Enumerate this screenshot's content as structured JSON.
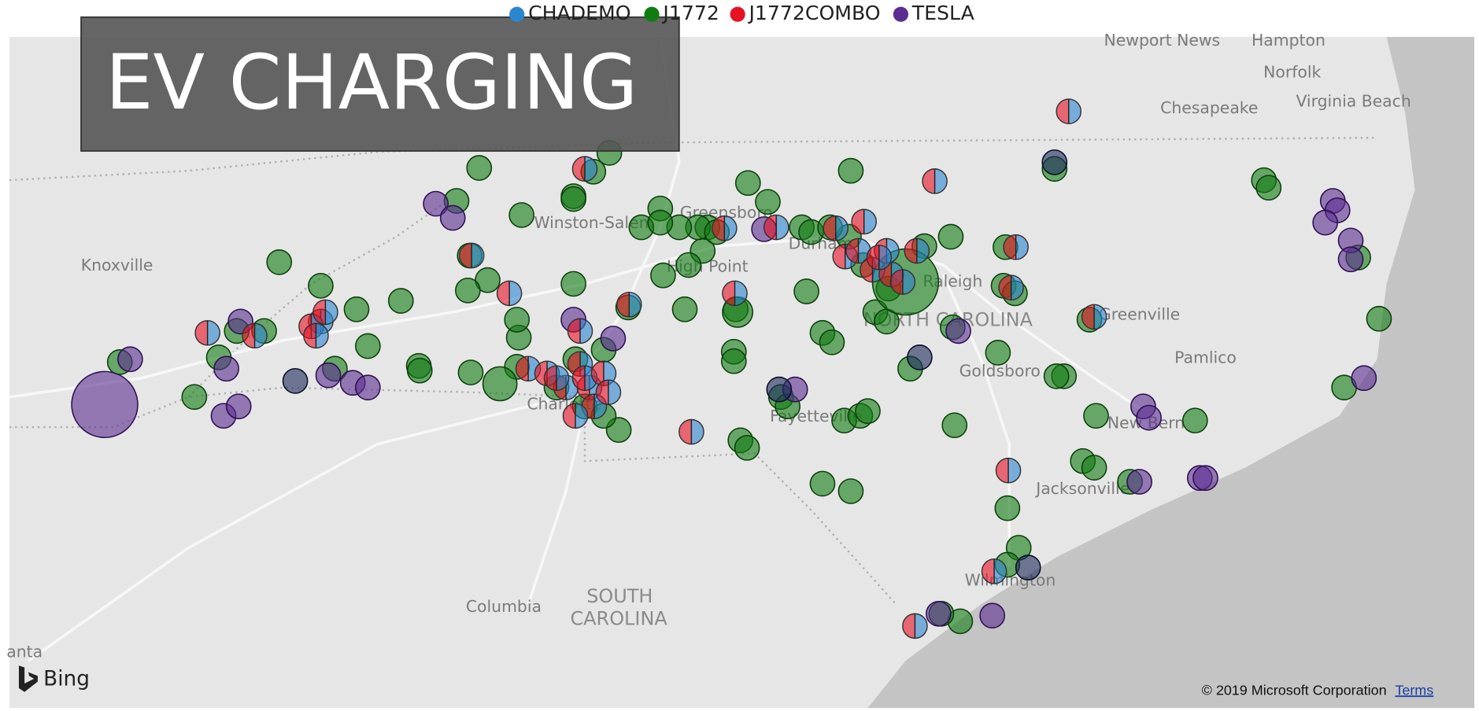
{
  "legend": {
    "items": [
      {
        "name": "CHADEMO",
        "color": "#2b86d0"
      },
      {
        "name": "J1772",
        "color": "#107c10"
      },
      {
        "name": "J1772COMBO",
        "color": "#e81123"
      },
      {
        "name": "TESLA",
        "color": "#5c2d91"
      }
    ]
  },
  "title": "EV CHARGING",
  "map": {
    "labels": [
      "Newport News",
      "Hampton",
      "Norfolk",
      "Chesapeake",
      "Virginia Beach",
      "Knoxville",
      "Winston-Salem",
      "Greensboro",
      "High Point",
      "Durham",
      "Raleigh",
      "NORTH CAROLINA",
      "Greenville",
      "Pamlico",
      "Goldsboro",
      "Fayetteville",
      "New Bern",
      "Jacksonville",
      "Wilmington",
      "Charlotte",
      "Columbia",
      "SOUTH",
      "CAROLINA",
      "anta"
    ],
    "attribution": {
      "brand": "Bing",
      "copyright": "© 2019 Microsoft Corporation",
      "terms": "Terms"
    }
  }
}
